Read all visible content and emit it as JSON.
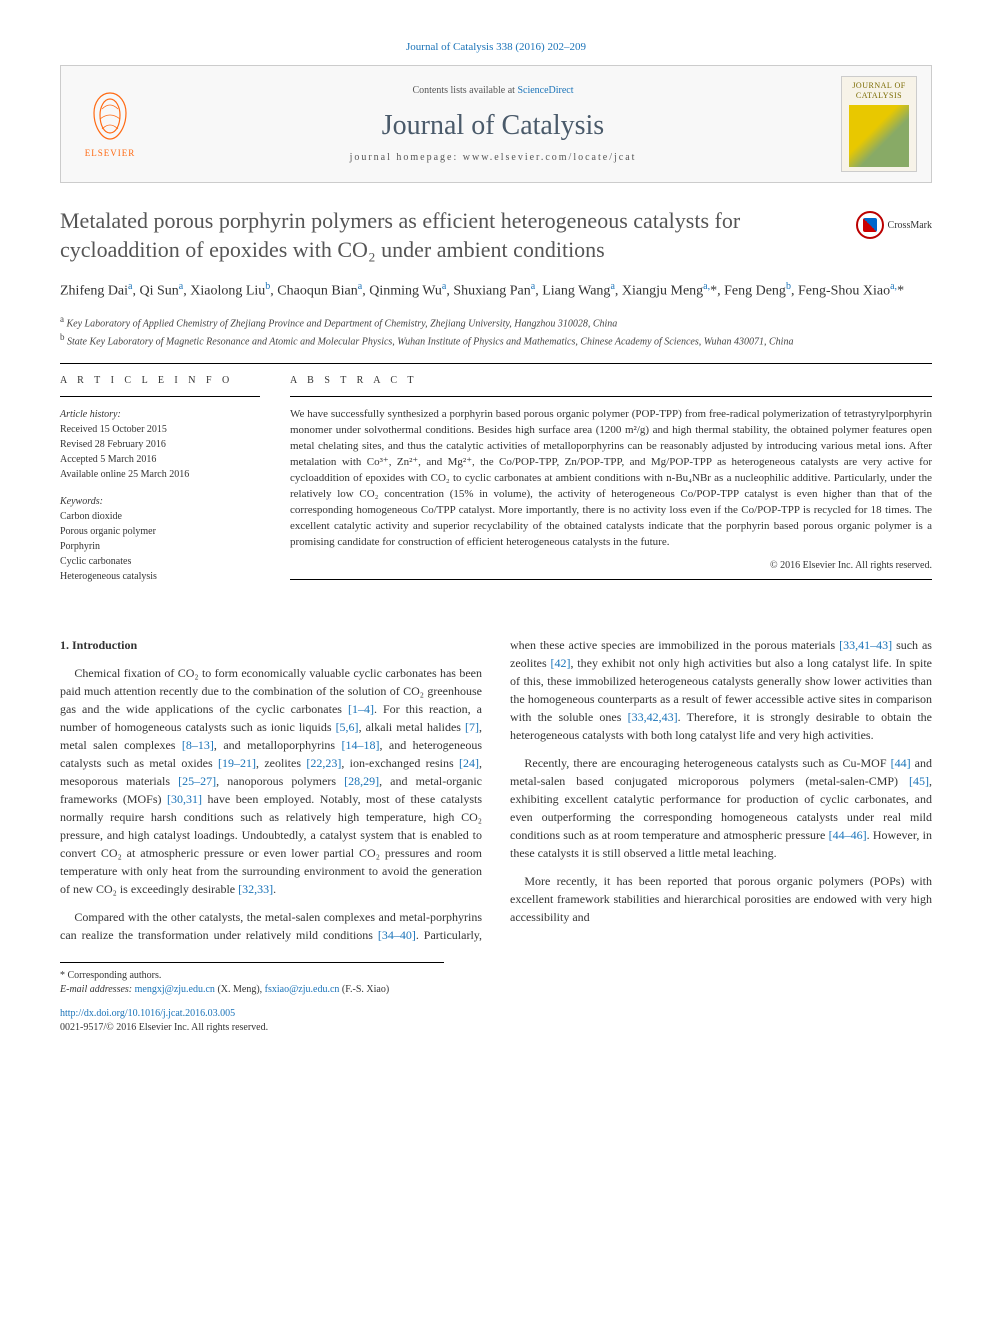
{
  "citation": "Journal of Catalysis 338 (2016) 202–209",
  "publisher": {
    "name": "ELSEVIER",
    "logo_color": "#ff6a13"
  },
  "header": {
    "contents_prefix": "Contents lists available at ",
    "contents_link": "ScienceDirect",
    "journal_name": "Journal of Catalysis",
    "homepage_label": "journal homepage: ",
    "homepage_url": "www.elsevier.com/locate/jcat",
    "cover_label": "JOURNAL OF CATALYSIS"
  },
  "crossmark_label": "CrossMark",
  "title": "Metalated porous porphyrin polymers as efficient heterogeneous catalysts for cycloaddition of epoxides with CO₂ under ambient conditions",
  "authors_html": "Zhifeng Dai<sup>a</sup>, Qi Sun<sup>a</sup>, Xiaolong Liu<sup>b</sup>, Chaoqun Bian<sup>a</sup>, Qinming Wu<sup>a</sup>, Shuxiang Pan<sup>a</sup>, Liang Wang<sup>a</sup>, Xiangju Meng<sup>a,</sup>*, Feng Deng<sup>b</sup>, Feng-Shou Xiao<sup>a,</sup>*",
  "affiliations": [
    {
      "sup": "a",
      "text": "Key Laboratory of Applied Chemistry of Zhejiang Province and Department of Chemistry, Zhejiang University, Hangzhou 310028, China"
    },
    {
      "sup": "b",
      "text": "State Key Laboratory of Magnetic Resonance and Atomic and Molecular Physics, Wuhan Institute of Physics and Mathematics, Chinese Academy of Sciences, Wuhan 430071, China"
    }
  ],
  "article_info": {
    "heading": "A R T I C L E   I N F O",
    "history_label": "Article history:",
    "history": [
      "Received 15 October 2015",
      "Revised 28 February 2016",
      "Accepted 5 March 2016",
      "Available online 25 March 2016"
    ],
    "keywords_label": "Keywords:",
    "keywords": [
      "Carbon dioxide",
      "Porous organic polymer",
      "Porphyrin",
      "Cyclic carbonates",
      "Heterogeneous catalysis"
    ]
  },
  "abstract": {
    "heading": "A B S T R A C T",
    "text": "We have successfully synthesized a porphyrin based porous organic polymer (POP-TPP) from free-radical polymerization of tetrastyrylporphyrin monomer under solvothermal conditions. Besides high surface area (1200 m²/g) and high thermal stability, the obtained polymer features open metal chelating sites, and thus the catalytic activities of metalloporphyrins can be reasonably adjusted by introducing various metal ions. After metalation with Co³⁺, Zn²⁺, and Mg²⁺, the Co/POP-TPP, Zn/POP-TPP, and Mg/POP-TPP as heterogeneous catalysts are very active for cycloaddition of epoxides with CO₂ to cyclic carbonates at ambient conditions with n-Bu₄NBr as a nucleophilic additive. Particularly, under the relatively low CO₂ concentration (15% in volume), the activity of heterogeneous Co/POP-TPP catalyst is even higher than that of the corresponding homogeneous Co/TPP catalyst. More importantly, there is no activity loss even if the Co/POP-TPP is recycled for 18 times. The excellent catalytic activity and superior recyclability of the obtained catalysts indicate that the porphyrin based porous organic polymer is a promising candidate for construction of efficient heterogeneous catalysts in the future.",
    "copyright": "© 2016 Elsevier Inc. All rights reserved."
  },
  "intro": {
    "heading": "1. Introduction",
    "p1": "Chemical fixation of CO₂ to form economically valuable cyclic carbonates has been paid much attention recently due to the combination of the solution of CO₂ greenhouse gas and the wide applications of the cyclic carbonates [1–4]. For this reaction, a number of homogeneous catalysts such as ionic liquids [5,6], alkali metal halides [7], metal salen complexes [8–13], and metalloporphyrins [14–18], and heterogeneous catalysts such as metal oxides [19–21], zeolites [22,23], ion-exchanged resins [24], mesoporous materials [25–27], nanoporous polymers [28,29], and metal-organic frameworks (MOFs) [30,31] have been employed. Notably, most of these catalysts normally require harsh conditions such as relatively high temperature, high CO₂ pressure, and high catalyst loadings. Undoubtedly, a catalyst system that is enabled to convert CO₂ at atmospheric pressure or even lower partial CO₂ pressures and room temperature with only heat from the surrounding environment to avoid the generation of new CO₂ is exceedingly desirable [32,33].",
    "p2": "Compared with the other catalysts, the metal-salen complexes and metal-porphyrins can realize the transformation under relatively mild conditions [34–40]. Particularly, when these active species are immobilized in the porous materials [33,41–43] such as zeolites [42], they exhibit not only high activities but also a long catalyst life. In spite of this, these immobilized heterogeneous catalysts generally show lower activities than the homogeneous counterparts as a result of fewer accessible active sites in comparison with the soluble ones [33,42,43]. Therefore, it is strongly desirable to obtain the heterogeneous catalysts with both long catalyst life and very high activities.",
    "p3": "Recently, there are encouraging heterogeneous catalysts such as Cu-MOF [44] and metal-salen based conjugated microporous polymers (metal-salen-CMP) [45], exhibiting excellent catalytic performance for production of cyclic carbonates, and even outperforming the corresponding homogeneous catalysts under real mild conditions such as at room temperature and atmospheric pressure [44–46]. However, in these catalysts it is still observed a little metal leaching.",
    "p4": "More recently, it has been reported that porous organic polymers (POPs) with excellent framework stabilities and hierarchical porosities are endowed with very high accessibility and"
  },
  "footnote": {
    "corr_label": "* Corresponding authors.",
    "email_label": "E-mail addresses:",
    "emails": [
      {
        "addr": "mengxj@zju.edu.cn",
        "who": "(X. Meng)"
      },
      {
        "addr": "fsxiao@zju.edu.cn",
        "who": "(F.-S. Xiao)"
      }
    ]
  },
  "footer": {
    "doi": "http://dx.doi.org/10.1016/j.jcat.2016.03.005",
    "issn_line": "0021-9517/© 2016 Elsevier Inc. All rights reserved."
  },
  "colors": {
    "link": "#1a73b8",
    "elsevier": "#ff6a13",
    "text": "#333333",
    "title_gray": "#555555"
  }
}
